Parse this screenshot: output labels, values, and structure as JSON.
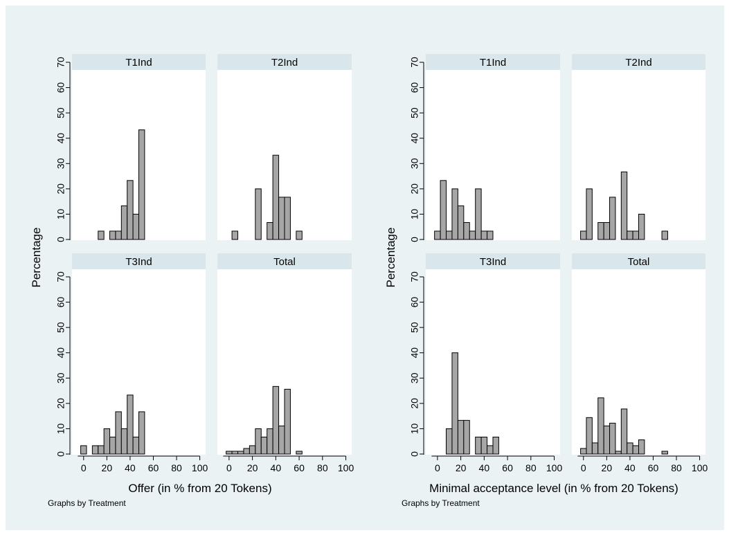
{
  "colors": {
    "outer_bg": "#eaf2f3",
    "plot_bg": "#ffffff",
    "strip": "#d9e6eb",
    "bar_fill": "#a6a6a6",
    "bar_stroke": "#000000"
  },
  "chart_data": [
    {
      "type": "histogram",
      "xlabel": "Offer (in % from 20 Tokens)",
      "ylabel": "Percentage",
      "note": "Graphs by Treatment",
      "xlim": [
        -10,
        105
      ],
      "ylim": [
        0,
        70
      ],
      "xticks": [
        0,
        20,
        40,
        60,
        80,
        100
      ],
      "yticks": [
        0,
        10,
        20,
        30,
        40,
        50,
        60,
        70
      ],
      "bin_width": 5,
      "panels": [
        {
          "title": "T1Ind",
          "bins": [
            [
              15,
              3.3
            ],
            [
              25,
              3.3
            ],
            [
              30,
              3.3
            ],
            [
              35,
              13.3
            ],
            [
              40,
              23.3
            ],
            [
              45,
              10
            ],
            [
              50,
              43.3
            ]
          ]
        },
        {
          "title": "T2Ind",
          "bins": [
            [
              5,
              3.3
            ],
            [
              25,
              20
            ],
            [
              35,
              6.7
            ],
            [
              40,
              33.3
            ],
            [
              45,
              16.7
            ],
            [
              50,
              16.7
            ],
            [
              60,
              3.3
            ]
          ]
        },
        {
          "title": "T3Ind",
          "bins": [
            [
              0,
              3.3
            ],
            [
              10,
              3.3
            ],
            [
              15,
              3.3
            ],
            [
              20,
              10
            ],
            [
              25,
              6.7
            ],
            [
              30,
              16.7
            ],
            [
              35,
              10
            ],
            [
              40,
              23.3
            ],
            [
              45,
              6.7
            ],
            [
              50,
              16.7
            ]
          ]
        },
        {
          "title": "Total",
          "bins": [
            [
              0,
              1.1
            ],
            [
              5,
              1.1
            ],
            [
              10,
              1.1
            ],
            [
              15,
              2.2
            ],
            [
              20,
              3.3
            ],
            [
              25,
              10
            ],
            [
              30,
              6.7
            ],
            [
              35,
              10
            ],
            [
              40,
              26.7
            ],
            [
              45,
              11.1
            ],
            [
              50,
              25.6
            ],
            [
              60,
              1.1
            ]
          ]
        }
      ]
    },
    {
      "type": "histogram",
      "xlabel": "Minimal acceptance level (in % from 20 Tokens)",
      "ylabel": "Percentage",
      "note": "Graphs by Treatment",
      "xlim": [
        -10,
        105
      ],
      "ylim": [
        0,
        70
      ],
      "xticks": [
        0,
        20,
        40,
        60,
        80,
        100
      ],
      "yticks": [
        0,
        10,
        20,
        30,
        40,
        50,
        60,
        70
      ],
      "bin_width": 5,
      "panels": [
        {
          "title": "T1Ind",
          "bins": [
            [
              0,
              3.3
            ],
            [
              5,
              23.3
            ],
            [
              10,
              3.3
            ],
            [
              15,
              20
            ],
            [
              20,
              13.3
            ],
            [
              25,
              6.7
            ],
            [
              30,
              3.3
            ],
            [
              35,
              20
            ],
            [
              40,
              3.3
            ],
            [
              45,
              3.3
            ]
          ]
        },
        {
          "title": "T2Ind",
          "bins": [
            [
              0,
              3.3
            ],
            [
              5,
              20
            ],
            [
              15,
              6.7
            ],
            [
              20,
              6.7
            ],
            [
              25,
              16.7
            ],
            [
              35,
              26.7
            ],
            [
              40,
              3.3
            ],
            [
              45,
              3.3
            ],
            [
              50,
              10
            ],
            [
              70,
              3.3
            ]
          ]
        },
        {
          "title": "T3Ind",
          "bins": [
            [
              10,
              10
            ],
            [
              15,
              40
            ],
            [
              20,
              13.3
            ],
            [
              25,
              13.3
            ],
            [
              35,
              6.7
            ],
            [
              40,
              6.7
            ],
            [
              45,
              3.3
            ],
            [
              50,
              6.7
            ]
          ]
        },
        {
          "title": "Total",
          "bins": [
            [
              0,
              2.2
            ],
            [
              5,
              14.4
            ],
            [
              10,
              4.4
            ],
            [
              15,
              22.2
            ],
            [
              20,
              11.1
            ],
            [
              25,
              12.2
            ],
            [
              30,
              1.1
            ],
            [
              35,
              17.8
            ],
            [
              40,
              4.4
            ],
            [
              45,
              3.3
            ],
            [
              50,
              5.6
            ],
            [
              70,
              1.1
            ]
          ]
        }
      ]
    }
  ]
}
